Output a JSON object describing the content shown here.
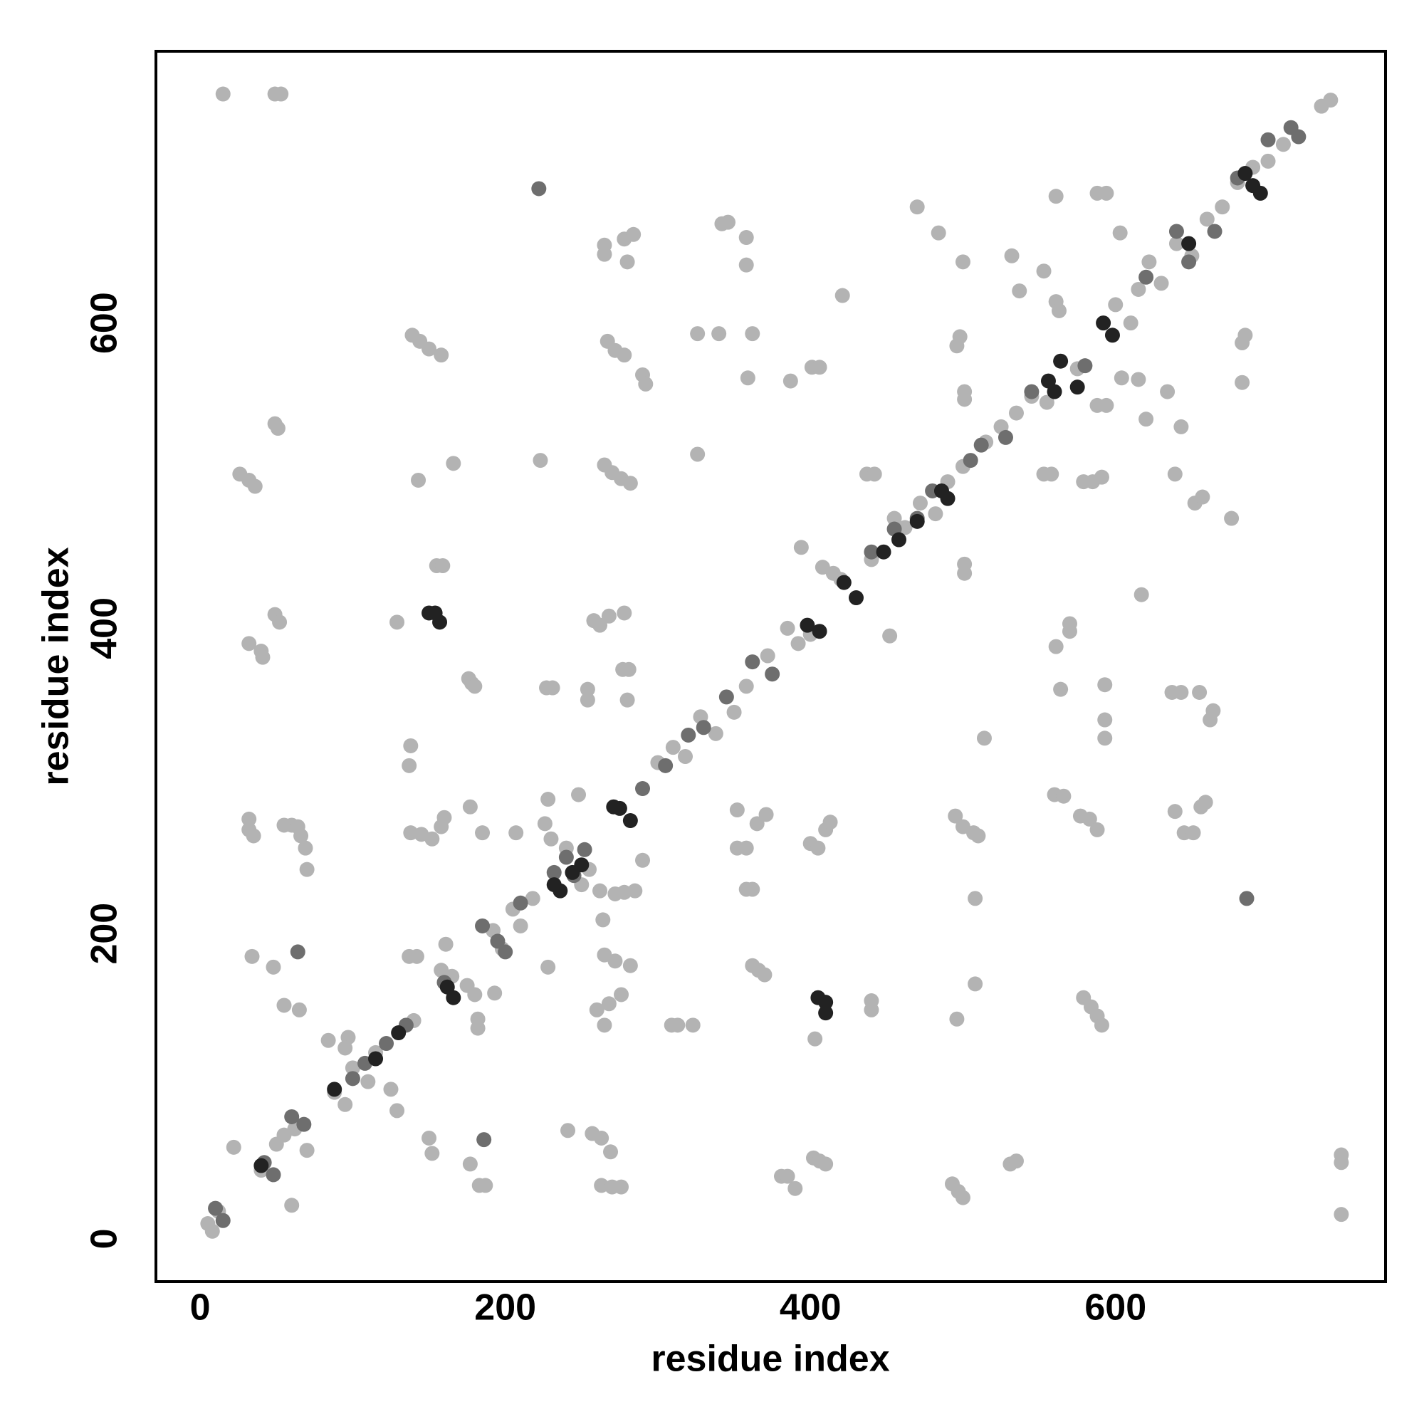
{
  "chart_data": {
    "type": "scatter",
    "xlabel": "residue index",
    "ylabel": "residue index",
    "xlim": [
      -29,
      777
    ],
    "ylim": [
      -28,
      778
    ],
    "xticks": [
      0,
      200,
      400,
      600
    ],
    "yticks": [
      0,
      200,
      400,
      600
    ],
    "grid": false,
    "series": [
      {
        "color": "#b3b3b3",
        "x": [
          15,
          49,
          53,
          26,
          32,
          36,
          49,
          51,
          139,
          144,
          150,
          158,
          137,
          142,
          265,
          265,
          278,
          284,
          280,
          267,
          272,
          278,
          290,
          292,
          342,
          346,
          358,
          358,
          362,
          326,
          340,
          359,
          387,
          401,
          406,
          421,
          470,
          484,
          500,
          532,
          537,
          553,
          561,
          588,
          594,
          498,
          496,
          501,
          501,
          326,
          223,
          265,
          270,
          276,
          282,
          143,
          166,
          49,
          52,
          32,
          40,
          41,
          129,
          155,
          159,
          176,
          178,
          180,
          258,
          262,
          268,
          278,
          277,
          281,
          227,
          231,
          254,
          254,
          280,
          138,
          137,
          32,
          32,
          35,
          55,
          60,
          64,
          66,
          69,
          70,
          138,
          145,
          152,
          158,
          160,
          177,
          185,
          207,
          228,
          248,
          290,
          272,
          278,
          285,
          34,
          48,
          55,
          65,
          150,
          152,
          177,
          183,
          187,
          182,
          182,
          193,
          161,
          228,
          264,
          265,
          272,
          282,
          260,
          268,
          276,
          265,
          241,
          257,
          263,
          269,
          263,
          270,
          276,
          22,
          60,
          84,
          97,
          95,
          129,
          309,
          313,
          323,
          352,
          365,
          371,
          352,
          358,
          358,
          362,
          362,
          366,
          370,
          381,
          385,
          390,
          400,
          405,
          410,
          413,
          403,
          402,
          406,
          410,
          440,
          440,
          394,
          452,
          437,
          442,
          495,
          500,
          507,
          510,
          508,
          496,
          508,
          493,
          497,
          500,
          531,
          535,
          514,
          501,
          501,
          553,
          558,
          561,
          563,
          561,
          564,
          570,
          570,
          560,
          566,
          577,
          583,
          588,
          593,
          593,
          593,
          579,
          585,
          591,
          588,
          594,
          604,
          615,
          620,
          617,
          579,
          584,
          588,
          591,
          634,
          643,
          639,
          652,
          657,
          637,
          643,
          655,
          664,
          662,
          639,
          645,
          651,
          656,
          659,
          676,
          685,
          683,
          683,
          748,
          748,
          748,
          603,
          5,
          8,
          12,
          40,
          50,
          55,
          62,
          70,
          88,
          95,
          100,
          110,
          115,
          125,
          140,
          158,
          165,
          175,
          180,
          192,
          198,
          205,
          210,
          218,
          226,
          230,
          240,
          250,
          255,
          262,
          300,
          310,
          318,
          328,
          338,
          350,
          358,
          372,
          385,
          392,
          400,
          408,
          415,
          420,
          440,
          455,
          462,
          472,
          482,
          490,
          500,
          515,
          525,
          535,
          545,
          555,
          575,
          600,
          610,
          615,
          622,
          630,
          640,
          650,
          660,
          670,
          680,
          690,
          700,
          710,
          735,
          741
        ],
        "values": [
          750,
          750,
          750,
          501,
          497,
          493,
          534,
          531,
          592,
          588,
          583,
          579,
          185,
          185,
          651,
          645,
          655,
          658,
          640,
          588,
          582,
          579,
          566,
          560,
          665,
          666,
          656,
          638,
          593,
          593,
          593,
          564,
          562,
          571,
          571,
          618,
          676,
          659,
          640,
          644,
          621,
          634,
          683,
          685,
          685,
          591,
          585,
          555,
          550,
          514,
          510,
          507,
          502,
          498,
          495,
          497,
          508,
          409,
          404,
          390,
          385,
          381,
          404,
          441,
          441,
          367,
          364,
          362,
          405,
          402,
          408,
          410,
          373,
          373,
          361,
          361,
          360,
          353,
          353,
          323,
          310,
          275,
          268,
          264,
          271,
          271,
          270,
          264,
          256,
          242,
          266,
          265,
          262,
          270,
          276,
          283,
          266,
          266,
          288,
          291,
          248,
          226,
          227,
          228,
          185,
          178,
          153,
          150,
          66,
          56,
          49,
          35,
          35,
          138,
          144,
          161,
          193,
          178,
          209,
          186,
          182,
          179,
          150,
          154,
          160,
          140,
          71,
          69,
          66,
          57,
          35,
          34,
          34,
          60,
          22,
          130,
          132,
          125,
          84,
          140,
          140,
          140,
          281,
          272,
          278,
          256,
          256,
          229,
          229,
          179,
          176,
          173,
          41,
          41,
          33,
          259,
          256,
          268,
          273,
          131,
          53,
          51,
          49,
          156,
          150,
          453,
          395,
          501,
          501,
          277,
          270,
          266,
          264,
          223,
          144,
          167,
          36,
          31,
          27,
          49,
          51,
          328,
          442,
          436,
          501,
          501,
          614,
          608,
          388,
          360,
          403,
          398,
          291,
          290,
          277,
          275,
          268,
          363,
          340,
          328,
          496,
          496,
          499,
          546,
          546,
          564,
          563,
          537,
          422,
          158,
          152,
          146,
          140,
          555,
          532,
          501,
          482,
          486,
          358,
          358,
          358,
          346,
          340,
          280,
          266,
          266,
          283,
          286,
          472,
          592,
          587,
          561,
          55,
          50,
          16,
          659,
          10,
          5,
          18,
          45,
          62,
          68,
          72,
          58,
          96,
          88,
          112,
          103,
          122,
          98,
          143,
          176,
          172,
          166,
          160,
          202,
          190,
          216,
          205,
          223,
          272,
          262,
          256,
          232,
          242,
          228,
          312,
          322,
          316,
          342,
          331,
          345,
          362,
          382,
          400,
          390,
          396,
          440,
          436,
          432,
          445,
          472,
          466,
          482,
          475,
          496,
          506,
          522,
          532,
          541,
          552,
          548,
          570,
          612,
          600,
          622,
          640,
          626,
          652,
          644,
          668,
          676,
          692,
          702,
          706,
          717,
          742,
          746
        ]
      },
      {
        "color": "#6e6e6e",
        "x": [
          222,
          64,
          186,
          686,
          10,
          15,
          42,
          48,
          60,
          68,
          100,
          108,
          122,
          135,
          160,
          185,
          195,
          200,
          210,
          232,
          240,
          245,
          252,
          290,
          305,
          320,
          330,
          345,
          362,
          375,
          440,
          455,
          470,
          480,
          505,
          512,
          528,
          545,
          580,
          620,
          640,
          648,
          665,
          680,
          700,
          715,
          720
        ],
        "values": [
          688,
          188,
          65,
          223,
          20,
          12,
          50,
          42,
          80,
          75,
          105,
          115,
          128,
          140,
          168,
          205,
          195,
          188,
          220,
          240,
          250,
          238,
          255,
          295,
          310,
          330,
          335,
          355,
          378,
          370,
          450,
          465,
          472,
          490,
          510,
          520,
          525,
          555,
          572,
          630,
          660,
          640,
          660,
          695,
          720,
          728,
          722
        ]
      },
      {
        "color": "#222222",
        "x": [
          150,
          154,
          157,
          405,
          410,
          410,
          271,
          275,
          282,
          40,
          88,
          115,
          130,
          162,
          166,
          232,
          236,
          244,
          250,
          398,
          406,
          422,
          430,
          448,
          458,
          470,
          486,
          490,
          556,
          560,
          564,
          575,
          592,
          598,
          648,
          690,
          695,
          685
        ],
        "values": [
          410,
          410,
          404,
          158,
          155,
          148,
          283,
          282,
          274,
          48,
          98,
          118,
          135,
          165,
          158,
          232,
          228,
          240,
          245,
          402,
          398,
          430,
          420,
          450,
          458,
          470,
          490,
          485,
          562,
          555,
          575,
          558,
          600,
          592,
          652,
          690,
          685,
          698
        ]
      }
    ]
  }
}
